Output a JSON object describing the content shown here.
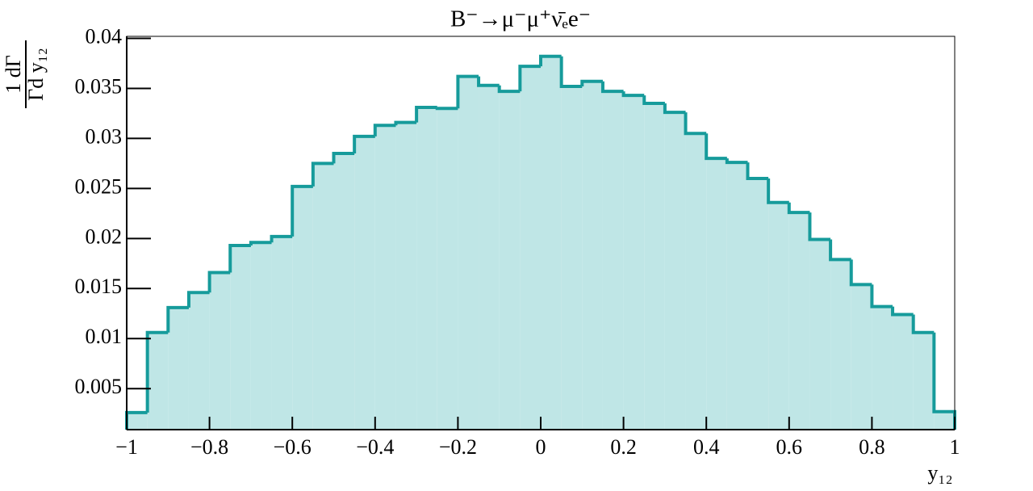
{
  "chart_data": {
    "type": "histogram",
    "title": "B⁻→μ⁻μ⁺ν̄ₑe⁻",
    "x_label": "y₁₂",
    "y_label": {
      "numerator": "1 dΓ",
      "denominator": "Γd y₁₂"
    },
    "bins": [
      -1,
      -0.95,
      -0.9,
      -0.85,
      -0.8,
      -0.75,
      -0.7,
      -0.65,
      -0.6,
      -0.55,
      -0.5,
      -0.45,
      -0.4,
      -0.35,
      -0.3,
      -0.25,
      -0.2,
      -0.15,
      -0.1,
      -0.05,
      0,
      0.05,
      0.1,
      0.15,
      0.2,
      0.25,
      0.3,
      0.35,
      0.4,
      0.45,
      0.5,
      0.55,
      0.6,
      0.65,
      0.7,
      0.75,
      0.8,
      0.85,
      0.9,
      0.95,
      1
    ],
    "values": [
      0.0026,
      0.0106,
      0.0131,
      0.0146,
      0.0166,
      0.0193,
      0.0196,
      0.0202,
      0.0252,
      0.0275,
      0.0285,
      0.0302,
      0.0313,
      0.0316,
      0.0331,
      0.033,
      0.0362,
      0.0353,
      0.0347,
      0.0372,
      0.0382,
      0.0352,
      0.0357,
      0.0347,
      0.0343,
      0.0335,
      0.0326,
      0.0305,
      0.028,
      0.0276,
      0.026,
      0.0236,
      0.0226,
      0.0199,
      0.0179,
      0.0154,
      0.0132,
      0.0124,
      0.0106,
      0.0027
    ],
    "color": "#169b9b",
    "fill_color": "#bfe6e6",
    "xlim": [
      -1,
      1
    ],
    "ylim": [
      0.0009,
      0.0402
    ],
    "xticks": [
      {
        "value": -1,
        "label": "−1"
      },
      {
        "value": -0.8,
        "label": "−0.8"
      },
      {
        "value": -0.6,
        "label": "−0.6"
      },
      {
        "value": -0.4,
        "label": "−0.4"
      },
      {
        "value": -0.2,
        "label": "−0.2"
      },
      0,
      0.2,
      0.4,
      0.6,
      0.8,
      1
    ],
    "yticks": [
      0.005,
      0.01,
      0.015,
      0.02,
      0.025,
      0.03,
      0.035,
      0.04
    ],
    "grid": false
  }
}
